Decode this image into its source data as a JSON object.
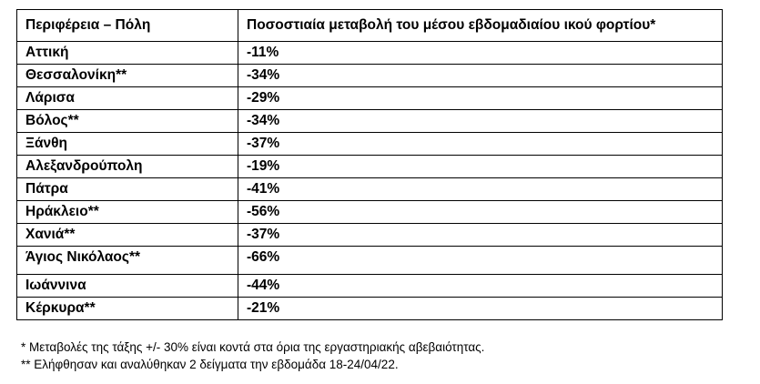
{
  "table": {
    "headers": [
      "Περιφέρεια – Πόλη",
      "Ποσοστιαία μεταβολή του μέσου εβδομαδιαίου ικού φορτίου*"
    ],
    "rows": [
      {
        "region": "Αττική",
        "change": "-11%"
      },
      {
        "region": "Θεσσαλονίκη**",
        "change": "-34%"
      },
      {
        "region": "Λάρισα",
        "change": "-29%"
      },
      {
        "region": "Βόλος**",
        "change": "-34%"
      },
      {
        "region": "Ξάνθη",
        "change": "-37%"
      },
      {
        "region": "Αλεξανδρούπολη",
        "change": "-19%"
      },
      {
        "region": "Πάτρα",
        "change": "-41%"
      },
      {
        "region": "Ηράκλειο**",
        "change": "-56%"
      },
      {
        "region": "Χανιά**",
        "change": "-37%"
      },
      {
        "region": "Άγιος Νικόλαος**",
        "change": "-66%"
      },
      {
        "region": "Ιωάννινα",
        "change": "-44%"
      },
      {
        "region": "Κέρκυρα**",
        "change": "-21%"
      }
    ]
  },
  "notes": [
    "* Μεταβολές της τάξης +/- 30% είναι κοντά στα όρια της εργαστηριακής αβεβαιότητας.",
    "** Ελήφθησαν και αναλύθηκαν 2 δείγματα την εβδομάδα 18-24/04/22."
  ]
}
